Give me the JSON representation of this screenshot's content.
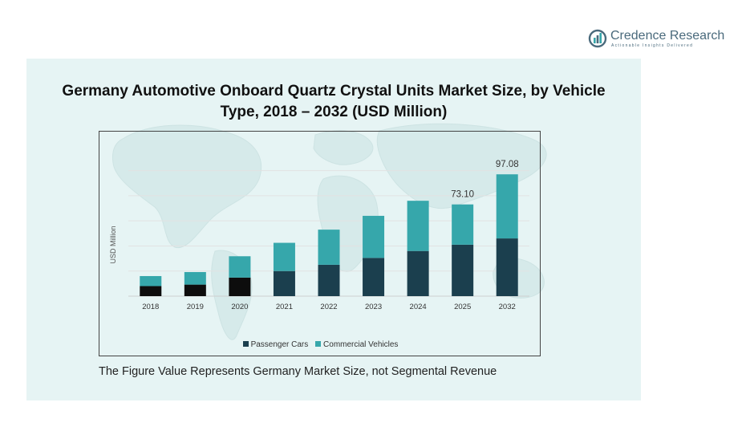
{
  "logo": {
    "name": "Credence Research",
    "tagline": "Actionable Insights Delivered"
  },
  "footnote": "The Figure Value Represents Germany Market Size, not Segmental Revenue",
  "colors": {
    "panel_bg": "#e6f4f4",
    "passenger": "#1b3f4e",
    "commercial": "#36a7ab",
    "passenger_early": "#0d0d0d",
    "logo": "#4a6a7c"
  },
  "chart_data": {
    "type": "bar",
    "stacked": true,
    "title": "Germany Automotive Onboard Quartz Crystal Units Market Size, by Vehicle Type, 2018 – 2032 (USD Million)",
    "xlabel": "",
    "ylabel": "USD Million",
    "ylim": [
      0,
      110
    ],
    "grid": true,
    "legend_position": "bottom",
    "categories": [
      "2018",
      "2019",
      "2020",
      "2021",
      "2022",
      "2023",
      "2024",
      "2025",
      "2032"
    ],
    "series": [
      {
        "name": "Passenger Cars",
        "values": [
          8.0,
          9.2,
          14.8,
          20.0,
          25.0,
          30.5,
          36.0,
          41.0,
          46.0
        ]
      },
      {
        "name": "Commercial Vehicles",
        "values": [
          8.0,
          10.0,
          17.0,
          22.5,
          28.0,
          33.5,
          40.0,
          32.1,
          51.08
        ]
      }
    ],
    "data_labels": [
      {
        "category": "2025",
        "text": "73.10"
      },
      {
        "category": "2032",
        "text": "97.08"
      }
    ]
  }
}
